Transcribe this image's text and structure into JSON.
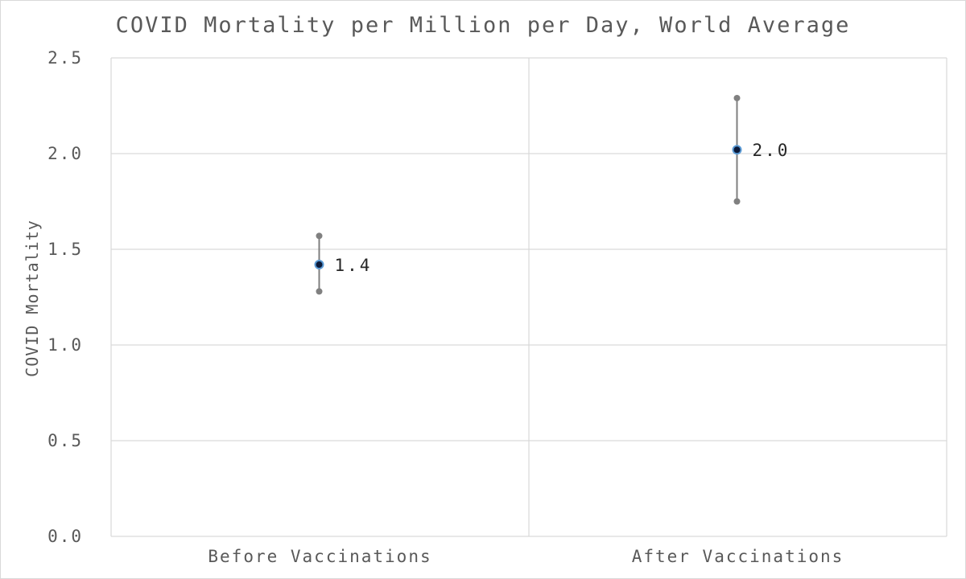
{
  "chart_data": {
    "type": "scatter",
    "title": "COVID Mortality per Million per Day, World Average",
    "xlabel": "",
    "ylabel": "COVID Mortality",
    "categories": [
      "Before Vaccinations",
      "After Vaccinations"
    ],
    "values": [
      1.42,
      2.02
    ],
    "data_labels": [
      "1.4",
      "2.0"
    ],
    "error_bars": [
      {
        "low": 1.28,
        "high": 1.57
      },
      {
        "low": 1.75,
        "high": 2.29
      }
    ],
    "ylim": [
      0,
      2.5
    ],
    "yticks": [
      0.0,
      0.5,
      1.0,
      1.5,
      2.0,
      2.5
    ],
    "ytick_labels": [
      "0.0",
      "0.5",
      "1.0",
      "1.5",
      "2.0",
      "2.5"
    ],
    "grid": true,
    "legend": "none",
    "colors": {
      "marker_fill": "#0b1a3a",
      "marker_outline": "#5b9bd5",
      "error_bar": "#7f7f7f",
      "grid": "#d9d9d9",
      "text": "#595959"
    }
  }
}
